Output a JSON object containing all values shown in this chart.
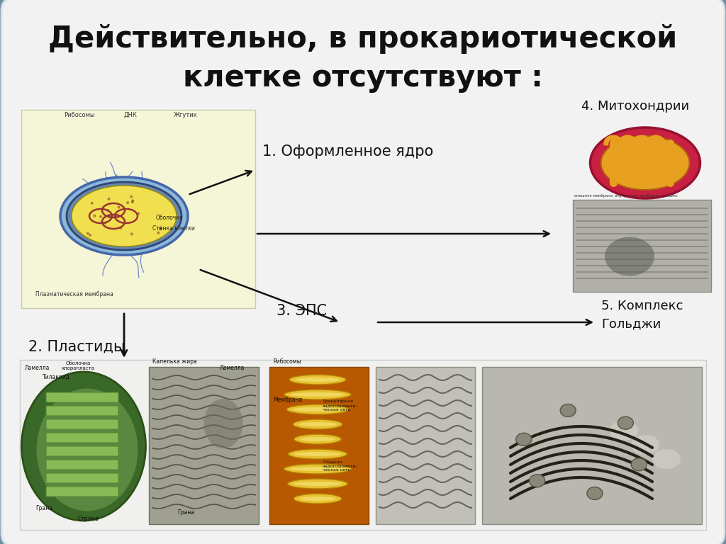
{
  "title_line1": "Действительно, в прокариотической",
  "title_line2": "клетке отсутствуют :",
  "label1": "1. Оформленное ядро",
  "label2": "2. Пластиды",
  "label3": "3. ЭПС",
  "label4": "4. Митохондрии",
  "label5": "5. Комплекс\nГольджи",
  "bg_outer": "#6e8faa",
  "bg_slide": "#f2f2f2",
  "title_color": "#111111",
  "arrow_color": "#111111",
  "label_color": "#111111"
}
